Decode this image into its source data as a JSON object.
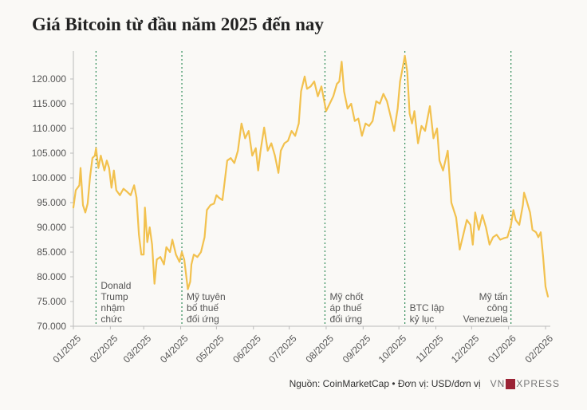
{
  "title": "Giá Bitcoin từ đầu năm 2025 đến nay",
  "footer": {
    "source": "Nguồn: CoinMarketCap • Đơn vị: USD/đơn vị",
    "logo_left": "VN",
    "logo_right": "XPRESS"
  },
  "colors": {
    "line": "#f2c14e",
    "event_line": "#2e8b57",
    "axis_text": "#555555"
  },
  "chart_data": {
    "type": "line",
    "title": "Giá Bitcoin từ đầu năm 2025 đến nay",
    "xlabel": "",
    "ylabel": "",
    "ylim": [
      70000,
      125000
    ],
    "yticks": [
      70000,
      75000,
      80000,
      85000,
      90000,
      95000,
      100000,
      105000,
      110000,
      115000,
      120000
    ],
    "ytick_labels": [
      "70.000",
      "75.000",
      "80.000",
      "85.000",
      "90.000",
      "95.000",
      "100.000",
      "105.000",
      "110.000",
      "115.000",
      "120.000"
    ],
    "xlim": [
      "2025-01-01",
      "2026-02-05"
    ],
    "xticks": [
      "2025-01-01",
      "2025-02-01",
      "2025-03-01",
      "2025-04-01",
      "2025-05-01",
      "2025-06-01",
      "2025-07-01",
      "2025-08-01",
      "2025-09-01",
      "2025-10-01",
      "2025-11-01",
      "2025-12-01",
      "2026-01-01",
      "2026-02-01"
    ],
    "xtick_labels": [
      "01/2025",
      "02/2025",
      "03/2025",
      "04/2025",
      "05/2025",
      "06/2025",
      "07/2025",
      "08/2025",
      "09/2025",
      "10/2025",
      "11/2025",
      "12/2025",
      "01/2026",
      "02/2026"
    ],
    "grid": false,
    "series": [
      {
        "points": [
          [
            "2025-01-01",
            94000
          ],
          [
            "2025-01-03",
            97500
          ],
          [
            "2025-01-06",
            98500
          ],
          [
            "2025-01-07",
            102000
          ],
          [
            "2025-01-09",
            94500
          ],
          [
            "2025-01-11",
            93000
          ],
          [
            "2025-01-13",
            94800
          ],
          [
            "2025-01-15",
            100200
          ],
          [
            "2025-01-17",
            104000
          ],
          [
            "2025-01-19",
            104500
          ],
          [
            "2025-01-20",
            106000
          ],
          [
            "2025-01-22",
            102000
          ],
          [
            "2025-01-24",
            104500
          ],
          [
            "2025-01-27",
            101500
          ],
          [
            "2025-01-29",
            103500
          ],
          [
            "2025-01-31",
            102000
          ],
          [
            "2025-02-02",
            98000
          ],
          [
            "2025-02-04",
            101500
          ],
          [
            "2025-02-06",
            97500
          ],
          [
            "2025-02-09",
            96500
          ],
          [
            "2025-02-12",
            97800
          ],
          [
            "2025-02-15",
            97200
          ],
          [
            "2025-02-18",
            96500
          ],
          [
            "2025-02-21",
            98500
          ],
          [
            "2025-02-23",
            96000
          ],
          [
            "2025-02-25",
            88500
          ],
          [
            "2025-02-27",
            84500
          ],
          [
            "2025-03-01",
            84500
          ],
          [
            "2025-03-02",
            94000
          ],
          [
            "2025-03-04",
            87000
          ],
          [
            "2025-03-06",
            90000
          ],
          [
            "2025-03-08",
            86500
          ],
          [
            "2025-03-10",
            78600
          ],
          [
            "2025-03-12",
            83500
          ],
          [
            "2025-03-15",
            84000
          ],
          [
            "2025-03-18",
            82500
          ],
          [
            "2025-03-20",
            86000
          ],
          [
            "2025-03-23",
            85000
          ],
          [
            "2025-03-25",
            87500
          ],
          [
            "2025-03-28",
            84500
          ],
          [
            "2025-03-31",
            83000
          ],
          [
            "2025-04-02",
            85000
          ],
          [
            "2025-04-04",
            83500
          ],
          [
            "2025-04-07",
            77500
          ],
          [
            "2025-04-09",
            79000
          ],
          [
            "2025-04-10",
            82500
          ],
          [
            "2025-04-12",
            84500
          ],
          [
            "2025-04-15",
            84000
          ],
          [
            "2025-04-18",
            85000
          ],
          [
            "2025-04-21",
            88000
          ],
          [
            "2025-04-23",
            93500
          ],
          [
            "2025-04-26",
            94500
          ],
          [
            "2025-04-29",
            94800
          ],
          [
            "2025-05-01",
            96500
          ],
          [
            "2025-05-03",
            96000
          ],
          [
            "2025-05-06",
            95500
          ],
          [
            "2025-05-08",
            99500
          ],
          [
            "2025-05-10",
            103500
          ],
          [
            "2025-05-13",
            104000
          ],
          [
            "2025-05-16",
            103000
          ],
          [
            "2025-05-19",
            105500
          ],
          [
            "2025-05-22",
            111000
          ],
          [
            "2025-05-25",
            108000
          ],
          [
            "2025-05-28",
            109500
          ],
          [
            "2025-05-31",
            104500
          ],
          [
            "2025-06-03",
            106000
          ],
          [
            "2025-06-05",
            101500
          ],
          [
            "2025-06-07",
            105500
          ],
          [
            "2025-06-10",
            110200
          ],
          [
            "2025-06-13",
            105500
          ],
          [
            "2025-06-16",
            107000
          ],
          [
            "2025-06-19",
            104500
          ],
          [
            "2025-06-22",
            101000
          ],
          [
            "2025-06-24",
            105500
          ],
          [
            "2025-06-27",
            107000
          ],
          [
            "2025-06-30",
            107500
          ],
          [
            "2025-07-03",
            109500
          ],
          [
            "2025-07-06",
            108500
          ],
          [
            "2025-07-09",
            111000
          ],
          [
            "2025-07-11",
            117500
          ],
          [
            "2025-07-14",
            120500
          ],
          [
            "2025-07-16",
            118000
          ],
          [
            "2025-07-19",
            118500
          ],
          [
            "2025-07-22",
            119500
          ],
          [
            "2025-07-25",
            116500
          ],
          [
            "2025-07-28",
            118500
          ],
          [
            "2025-08-01",
            113500
          ],
          [
            "2025-08-04",
            115000
          ],
          [
            "2025-08-07",
            116500
          ],
          [
            "2025-08-10",
            119000
          ],
          [
            "2025-08-12",
            119500
          ],
          [
            "2025-08-14",
            123500
          ],
          [
            "2025-08-16",
            117500
          ],
          [
            "2025-08-19",
            114000
          ],
          [
            "2025-08-22",
            115000
          ],
          [
            "2025-08-25",
            111500
          ],
          [
            "2025-08-28",
            112000
          ],
          [
            "2025-08-31",
            108500
          ],
          [
            "2025-09-03",
            111000
          ],
          [
            "2025-09-06",
            110500
          ],
          [
            "2025-09-09",
            111500
          ],
          [
            "2025-09-12",
            115500
          ],
          [
            "2025-09-15",
            115000
          ],
          [
            "2025-09-18",
            117000
          ],
          [
            "2025-09-21",
            115500
          ],
          [
            "2025-09-24",
            112500
          ],
          [
            "2025-09-27",
            109500
          ],
          [
            "2025-09-30",
            114000
          ],
          [
            "2025-10-02",
            119500
          ],
          [
            "2025-10-04",
            122000
          ],
          [
            "2025-10-06",
            124700
          ],
          [
            "2025-10-08",
            121500
          ],
          [
            "2025-10-10",
            113000
          ],
          [
            "2025-10-12",
            111000
          ],
          [
            "2025-10-14",
            113500
          ],
          [
            "2025-10-17",
            107000
          ],
          [
            "2025-10-20",
            110500
          ],
          [
            "2025-10-23",
            109500
          ],
          [
            "2025-10-27",
            114500
          ],
          [
            "2025-10-30",
            108000
          ],
          [
            "2025-11-02",
            110000
          ],
          [
            "2025-11-04",
            103500
          ],
          [
            "2025-11-07",
            101500
          ],
          [
            "2025-11-11",
            105500
          ],
          [
            "2025-11-14",
            95000
          ],
          [
            "2025-11-18",
            92000
          ],
          [
            "2025-11-21",
            85500
          ],
          [
            "2025-11-24",
            88500
          ],
          [
            "2025-11-27",
            91500
          ],
          [
            "2025-11-30",
            90500
          ],
          [
            "2025-12-02",
            86500
          ],
          [
            "2025-12-04",
            93000
          ],
          [
            "2025-12-07",
            89500
          ],
          [
            "2025-12-10",
            92500
          ],
          [
            "2025-12-13",
            90000
          ],
          [
            "2025-12-16",
            86500
          ],
          [
            "2025-12-19",
            88000
          ],
          [
            "2025-12-22",
            88500
          ],
          [
            "2025-12-25",
            87500
          ],
          [
            "2025-12-28",
            87800
          ],
          [
            "2025-12-31",
            88000
          ],
          [
            "2026-01-03",
            90500
          ],
          [
            "2026-01-05",
            93500
          ],
          [
            "2026-01-07",
            91500
          ],
          [
            "2026-01-10",
            90500
          ],
          [
            "2026-01-13",
            94500
          ],
          [
            "2026-01-14",
            97000
          ],
          [
            "2026-01-16",
            95500
          ],
          [
            "2026-01-19",
            93000
          ],
          [
            "2026-01-21",
            89500
          ],
          [
            "2026-01-24",
            89000
          ],
          [
            "2026-01-26",
            88000
          ],
          [
            "2026-01-28",
            89000
          ],
          [
            "2026-01-30",
            84000
          ],
          [
            "2026-02-01",
            78000
          ],
          [
            "2026-02-03",
            76000
          ]
        ]
      }
    ],
    "annotations": [
      {
        "date": "2025-01-20",
        "lines": [
          "Donald",
          "Trump",
          "nhậm",
          "chức"
        ],
        "align": "left"
      },
      {
        "date": "2025-04-02",
        "lines": [
          "Mỹ tuyên",
          "bố thuế",
          "đối ứng"
        ],
        "align": "left"
      },
      {
        "date": "2025-07-31",
        "lines": [
          "Mỹ chốt",
          "áp thuế",
          "đối ứng"
        ],
        "align": "left"
      },
      {
        "date": "2025-10-06",
        "lines": [
          "BTC lập",
          "kỷ lục"
        ],
        "align": "left"
      },
      {
        "date": "2026-01-03",
        "lines": [
          "Mỹ tấn",
          "công",
          "Venezuela"
        ],
        "align": "right"
      }
    ]
  }
}
